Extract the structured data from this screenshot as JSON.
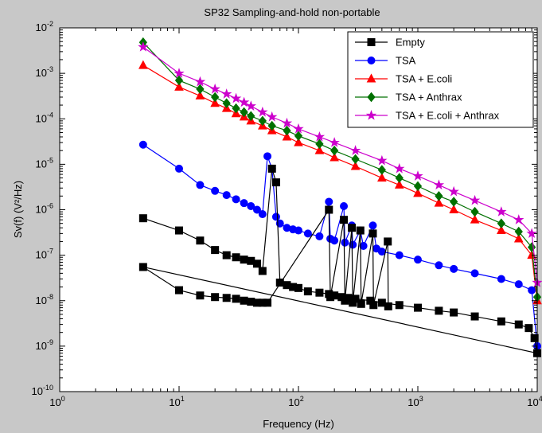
{
  "colors": {
    "figure_background": "#c8c8c8",
    "axes_background": "#ffffff",
    "axes_line": "#000000"
  },
  "chart_data": {
    "type": "line",
    "title": "SP32 Sampling-and-hold non-portable",
    "xlabel": "Frequency (Hz)",
    "ylabel": "Sv(f) (V²/Hz)",
    "xscale": "log",
    "yscale": "log",
    "xlim": [
      1,
      10000
    ],
    "ylim": [
      1e-10,
      0.01
    ],
    "x_tick_labels": [
      {
        "base": "10",
        "exp": "0"
      },
      {
        "base": "10",
        "exp": "1"
      },
      {
        "base": "10",
        "exp": "2"
      },
      {
        "base": "10",
        "exp": "3"
      },
      {
        "base": "10",
        "exp": "4"
      }
    ],
    "y_tick_labels": [
      {
        "base": "10",
        "exp": "-10"
      },
      {
        "base": "10",
        "exp": "-9"
      },
      {
        "base": "10",
        "exp": "-8"
      },
      {
        "base": "10",
        "exp": "-7"
      },
      {
        "base": "10",
        "exp": "-6"
      },
      {
        "base": "10",
        "exp": "-5"
      },
      {
        "base": "10",
        "exp": "-4"
      },
      {
        "base": "10",
        "exp": "-3"
      },
      {
        "base": "10",
        "exp": "-2"
      }
    ],
    "grid": false,
    "legend_position": "top-right",
    "series": [
      {
        "name": "Empty",
        "color": "#000000",
        "marker": "square",
        "points": [
          [
            5,
            6.5e-07
          ],
          [
            10,
            3.5e-07
          ],
          [
            15,
            2.1e-07
          ],
          [
            20,
            1.3e-07
          ],
          [
            25,
            1e-07
          ],
          [
            30,
            9e-08
          ],
          [
            35,
            8e-08
          ],
          [
            40,
            7.5e-08
          ],
          [
            45,
            6.5e-08
          ],
          [
            50,
            4.5e-08
          ],
          [
            60,
            8e-06
          ],
          [
            65,
            4e-06
          ],
          [
            70,
            2.5e-08
          ],
          [
            80,
            2.2e-08
          ],
          [
            90,
            2e-08
          ],
          [
            100,
            1.9e-08
          ],
          [
            120,
            1.6e-08
          ],
          [
            150,
            1.5e-08
          ],
          [
            180,
            1.4e-08
          ],
          [
            200,
            1.3e-08
          ],
          [
            230,
            1.2e-08
          ],
          [
            260,
            1.15e-08
          ],
          [
            300,
            1.1e-08
          ],
          [
            400,
            1e-08
          ],
          [
            500,
            9e-09
          ],
          [
            700,
            8e-09
          ],
          [
            1000,
            7e-09
          ],
          [
            1500,
            6e-09
          ],
          [
            2000,
            5.5e-09
          ],
          [
            3000,
            4.5e-09
          ],
          [
            5000,
            3.5e-09
          ],
          [
            7000,
            3e-09
          ],
          [
            8500,
            2.5e-09
          ],
          [
            9500,
            1.5e-09
          ],
          [
            10000,
            7e-10
          ],
          [
            5,
            5.5e-08
          ],
          [
            10,
            1.7e-08
          ],
          [
            15,
            1.3e-08
          ],
          [
            20,
            1.2e-08
          ],
          [
            25,
            1.15e-08
          ],
          [
            30,
            1.1e-08
          ],
          [
            35,
            1e-08
          ],
          [
            40,
            9.5e-09
          ],
          [
            45,
            9e-09
          ],
          [
            50,
            9e-09
          ],
          [
            55,
            9e-09
          ],
          [
            180,
            1e-06
          ],
          [
            185,
            1.2e-08
          ],
          [
            240,
            6e-07
          ],
          [
            245,
            1e-08
          ],
          [
            280,
            4e-07
          ],
          [
            285,
            9e-09
          ],
          [
            330,
            3.5e-07
          ],
          [
            335,
            8.5e-09
          ],
          [
            420,
            3e-07
          ],
          [
            425,
            8e-09
          ],
          [
            560,
            2e-07
          ],
          [
            565,
            7.5e-09
          ]
        ]
      },
      {
        "name": "TSA",
        "color": "#0000ff",
        "marker": "circle",
        "points": [
          [
            5,
            2.7e-05
          ],
          [
            10,
            8e-06
          ],
          [
            15,
            3.5e-06
          ],
          [
            20,
            2.6e-06
          ],
          [
            25,
            2.1e-06
          ],
          [
            30,
            1.7e-06
          ],
          [
            35,
            1.4e-06
          ],
          [
            40,
            1.2e-06
          ],
          [
            45,
            1e-06
          ],
          [
            50,
            8e-07
          ],
          [
            55,
            1.5e-05
          ],
          [
            60,
            8e-06
          ],
          [
            65,
            7e-07
          ],
          [
            70,
            5e-07
          ],
          [
            80,
            4e-07
          ],
          [
            90,
            3.7e-07
          ],
          [
            100,
            3.5e-07
          ],
          [
            120,
            3e-07
          ],
          [
            150,
            2.6e-07
          ],
          [
            180,
            1.5e-06
          ],
          [
            185,
            2.3e-07
          ],
          [
            200,
            2.1e-07
          ],
          [
            240,
            1.2e-06
          ],
          [
            245,
            1.9e-07
          ],
          [
            280,
            4.5e-07
          ],
          [
            285,
            1.7e-07
          ],
          [
            330,
            3.5e-07
          ],
          [
            350,
            1.6e-07
          ],
          [
            420,
            4.5e-07
          ],
          [
            450,
            1.4e-07
          ],
          [
            500,
            1.2e-07
          ],
          [
            700,
            1e-07
          ],
          [
            1000,
            8e-08
          ],
          [
            1500,
            6e-08
          ],
          [
            2000,
            5e-08
          ],
          [
            3000,
            4e-08
          ],
          [
            5000,
            3e-08
          ],
          [
            7000,
            2.3e-08
          ],
          [
            9000,
            1.7e-08
          ],
          [
            10000,
            1e-09
          ]
        ]
      },
      {
        "name": "TSA + E.coli",
        "color": "#ff0000",
        "marker": "triangle",
        "points": [
          [
            5,
            0.0015
          ],
          [
            10,
            0.0005
          ],
          [
            15,
            0.00032
          ],
          [
            20,
            0.00022
          ],
          [
            25,
            0.00017
          ],
          [
            30,
            0.00013
          ],
          [
            35,
            0.00011
          ],
          [
            40,
            9e-05
          ],
          [
            50,
            7e-05
          ],
          [
            60,
            5.5e-05
          ],
          [
            80,
            4e-05
          ],
          [
            100,
            3e-05
          ],
          [
            150,
            2e-05
          ],
          [
            200,
            1.4e-05
          ],
          [
            300,
            9e-06
          ],
          [
            500,
            5e-06
          ],
          [
            700,
            3.5e-06
          ],
          [
            1000,
            2.3e-06
          ],
          [
            1500,
            1.4e-06
          ],
          [
            2000,
            1e-06
          ],
          [
            3000,
            6e-07
          ],
          [
            5000,
            3.5e-07
          ],
          [
            7000,
            2.3e-07
          ],
          [
            9000,
            1e-07
          ],
          [
            10000,
            1e-08
          ]
        ]
      },
      {
        "name": "TSA + Anthrax",
        "color": "#007000",
        "marker": "diamond",
        "points": [
          [
            5,
            0.0048
          ],
          [
            10,
            0.0007
          ],
          [
            15,
            0.00045
          ],
          [
            20,
            0.0003
          ],
          [
            25,
            0.00022
          ],
          [
            30,
            0.00017
          ],
          [
            35,
            0.00014
          ],
          [
            40,
            0.000115
          ],
          [
            50,
            9e-05
          ],
          [
            60,
            7e-05
          ],
          [
            80,
            5.5e-05
          ],
          [
            100,
            4.2e-05
          ],
          [
            150,
            2.8e-05
          ],
          [
            200,
            2e-05
          ],
          [
            300,
            1.3e-05
          ],
          [
            500,
            7.5e-06
          ],
          [
            700,
            5e-06
          ],
          [
            1000,
            3.3e-06
          ],
          [
            1500,
            2e-06
          ],
          [
            2000,
            1.5e-06
          ],
          [
            3000,
            9e-07
          ],
          [
            5000,
            5e-07
          ],
          [
            7000,
            3.3e-07
          ],
          [
            9000,
            1.5e-07
          ],
          [
            10000,
            1.2e-08
          ]
        ]
      },
      {
        "name": "TSA + E.coli + Anthrax",
        "color": "#cc00cc",
        "marker": "star",
        "points": [
          [
            5,
            0.0038
          ],
          [
            10,
            0.001
          ],
          [
            15,
            0.00065
          ],
          [
            20,
            0.00045
          ],
          [
            25,
            0.00035
          ],
          [
            30,
            0.00028
          ],
          [
            35,
            0.00023
          ],
          [
            40,
            0.00019
          ],
          [
            50,
            0.00014
          ],
          [
            60,
            0.00011
          ],
          [
            80,
            8e-05
          ],
          [
            100,
            6e-05
          ],
          [
            150,
            4e-05
          ],
          [
            200,
            3e-05
          ],
          [
            300,
            2e-05
          ],
          [
            500,
            1.2e-05
          ],
          [
            700,
            8e-06
          ],
          [
            1000,
            5.5e-06
          ],
          [
            1500,
            3.5e-06
          ],
          [
            2000,
            2.5e-06
          ],
          [
            3000,
            1.6e-06
          ],
          [
            5000,
            9e-07
          ],
          [
            7000,
            6e-07
          ],
          [
            9000,
            3e-07
          ],
          [
            10000,
            2.5e-08
          ]
        ]
      }
    ]
  }
}
